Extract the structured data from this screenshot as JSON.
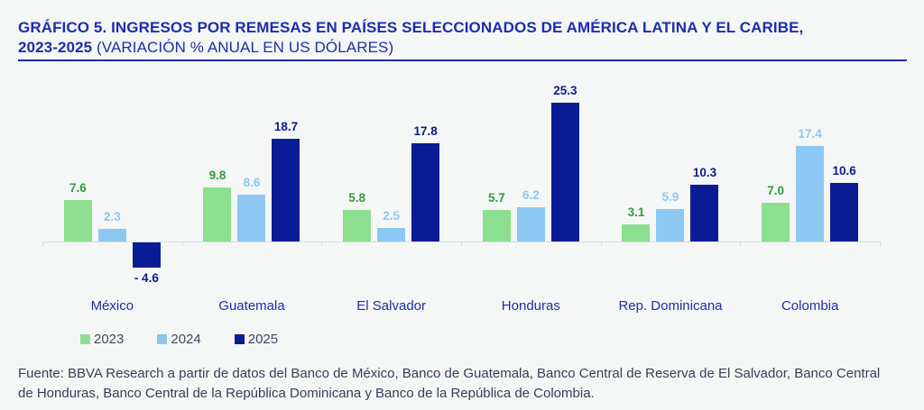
{
  "title": {
    "bold_line1": "GRÁFICO 5. INGRESOS POR REMESAS EN PAÍSES SELECCIONADOS DE AMÉRICA LATINA Y EL CARIBE,",
    "bold_line2": "2023-2025",
    "rest": " (VARIACIÓN % ANUAL EN US DÓLARES)"
  },
  "chart_data": {
    "type": "bar",
    "categories": [
      "México",
      "Guatemala",
      "El Salvador",
      "Honduras",
      "Rep. Dominicana",
      "Colombia"
    ],
    "series": [
      {
        "name": "2023",
        "bar_color": "#8BDF8E",
        "label_color": "#2F9E3C",
        "values": [
          7.6,
          9.8,
          5.8,
          5.7,
          3.1,
          7.0
        ],
        "labels": [
          "7.6",
          "9.8",
          "5.8",
          "5.7",
          "3.1",
          "7.0"
        ]
      },
      {
        "name": "2024",
        "bar_color": "#8CC8F2",
        "label_color": "#8CC8F2",
        "values": [
          2.3,
          8.6,
          2.5,
          6.2,
          5.9,
          17.4
        ],
        "labels": [
          "2.3",
          "8.6",
          "2.5",
          "6.2",
          "5.9",
          "17.4"
        ]
      },
      {
        "name": "2025",
        "bar_color": "#0A1B96",
        "label_color": "#0A1B96",
        "values": [
          -4.6,
          18.7,
          17.8,
          25.3,
          10.3,
          10.6
        ],
        "labels": [
          "- 4.6",
          "18.7",
          "17.8",
          "25.3",
          "10.3",
          "10.6"
        ]
      }
    ],
    "ylim": [
      -8,
      30
    ],
    "grid": false,
    "axis_labels_visible": false,
    "legend_position": "bottom-left",
    "colors": {
      "background": "#F5F7F7",
      "title": "#1B2DB2",
      "axis": "#D9DDDE",
      "category_label": "#1B2DB2",
      "legend_text": "#3C4660",
      "source_text": "#333F58"
    }
  },
  "source": "Fuente: BBVA Research a partir de datos del Banco de México, Banco de Guatemala, Banco Central de Reserva de El Salvador, Banco Central de Honduras, Banco Central de la República Dominicana y Banco de la República de Colombia."
}
